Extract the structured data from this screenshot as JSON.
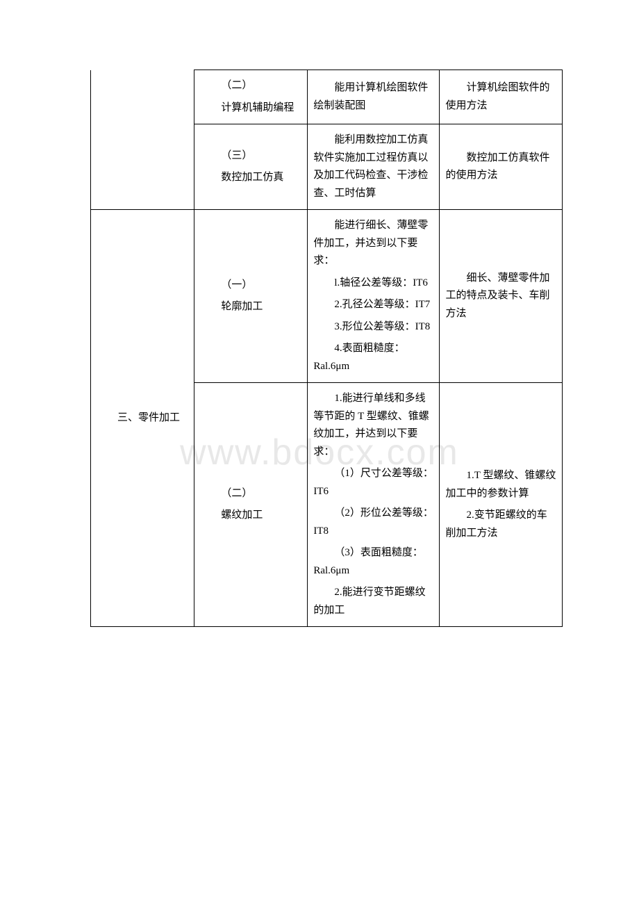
{
  "watermark": "www.bdocx.com",
  "table": {
    "border_color": "#000000",
    "font_size": 15,
    "font_family": "SimSun",
    "text_color": "#000000",
    "background_color": "#ffffff",
    "column_widths_pct": [
      22,
      24,
      28,
      26
    ],
    "rows": [
      {
        "col1": {
          "content": "",
          "rowspan": 2,
          "no_top_border": true
        },
        "col2": {
          "paras": [
            {
              "text": "（二）",
              "indent": true
            },
            {
              "text": "计算机辅助编程",
              "indent": true,
              "hanging": true
            }
          ]
        },
        "col3": {
          "paras": [
            {
              "text": "能用计算机绘图软件绘制装配图",
              "indent": true
            }
          ]
        },
        "col4": {
          "paras": [
            {
              "text": "计算机绘图软件的使用方法",
              "indent": true
            }
          ]
        }
      },
      {
        "col2": {
          "paras": [
            {
              "text": "（三）",
              "indent": true
            },
            {
              "text": "数控加工仿真",
              "indent": true,
              "hanging": true
            }
          ]
        },
        "col3": {
          "paras": [
            {
              "text": "能利用数控加工仿真软件实施加工过程仿真以及加工代码检查、干涉检查、工时估算",
              "indent": true
            }
          ]
        },
        "col4": {
          "paras": [
            {
              "text": "数控加工仿真软件的使用方法",
              "indent": true
            }
          ]
        }
      },
      {
        "col1": {
          "content": "三、零件加工",
          "rowspan": 2,
          "indent": true
        },
        "col2": {
          "paras": [
            {
              "text": "（一）",
              "indent": true
            },
            {
              "text": "轮廓加工",
              "indent": true
            }
          ]
        },
        "col3": {
          "paras": [
            {
              "text": "能进行细长、薄壁零件加工，并达到以下要求：",
              "indent": true
            },
            {
              "text": "l.轴径公差等级：IT6",
              "indent": true
            },
            {
              "text": "2.孔径公差等级：IT7",
              "indent": true
            },
            {
              "text": "3.形位公差等级：IT8",
              "indent": true
            },
            {
              "text": "4.表面粗糙度：Ral.6μm",
              "indent": true
            }
          ]
        },
        "col4": {
          "paras": [
            {
              "text": "细长、薄壁零件加工的特点及装卡、车削方法",
              "indent": true
            }
          ]
        }
      },
      {
        "col2": {
          "paras": [
            {
              "text": "（二）",
              "indent": true
            },
            {
              "text": "螺纹加工",
              "indent": true
            }
          ]
        },
        "col3": {
          "paras": [
            {
              "text": "1.能进行单线和多线等节距的 T 型螺纹、锥螺纹加工，并达到以下要求：",
              "indent": true
            },
            {
              "text": "（1）尺寸公差等级：IT6",
              "indent": true
            },
            {
              "text": "（2）形位公差等级：IT8",
              "indent": true
            },
            {
              "text": "（3）表面粗糙度：Ral.6μm",
              "indent": true
            },
            {
              "text": "2.能进行变节距螺纹的加工",
              "indent": true
            }
          ]
        },
        "col4": {
          "paras": [
            {
              "text": "1.T 型螺纹、锥螺纹加工中的参数计算",
              "indent": true
            },
            {
              "text": "2.变节距螺纹的车削加工方法",
              "indent": true
            }
          ]
        }
      }
    ]
  }
}
